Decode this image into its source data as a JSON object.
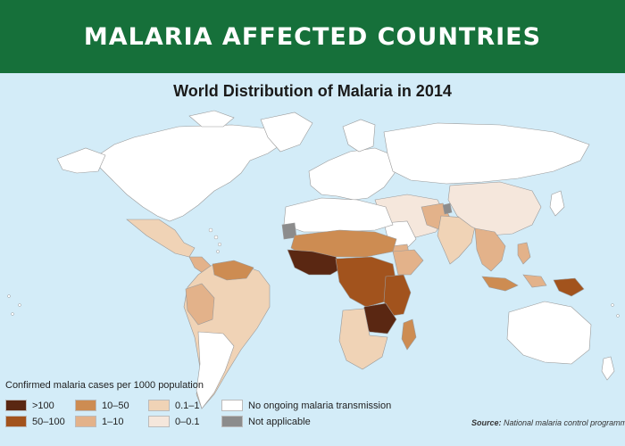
{
  "banner": {
    "title": "MALARIA AFFECTED COUNTRIES"
  },
  "map": {
    "title": "World Distribution of Malaria in 2014",
    "colors": {
      "ocean": "#d3ecf8",
      "none": "#ffffff",
      "na": "#8c8c8c",
      "gt100": "#5a2712",
      "c50_100": "#a2531d",
      "c10_50": "#cd8c52",
      "c1_10": "#e3b28a",
      "c01_1": "#f0d3b6",
      "c0_01": "#f5e7dc"
    }
  },
  "legend": {
    "title": "Confirmed malaria cases per 1000 population",
    "items": [
      {
        "label": ">100",
        "color": "#5a2712"
      },
      {
        "label": "50–100",
        "color": "#a2531d"
      },
      {
        "label": "10–50",
        "color": "#cd8c52"
      },
      {
        "label": "1–10",
        "color": "#e3b28a"
      },
      {
        "label": "0.1–1",
        "color": "#f0d3b6"
      },
      {
        "label": "0–0.1",
        "color": "#f5e7dc"
      },
      {
        "label": "No ongoing malaria transmission",
        "color": "#ffffff"
      },
      {
        "label": "Not applicable",
        "color": "#8c8c8c"
      }
    ]
  },
  "source": {
    "prefix": "Source:",
    "text": "National malaria control programme repo"
  }
}
